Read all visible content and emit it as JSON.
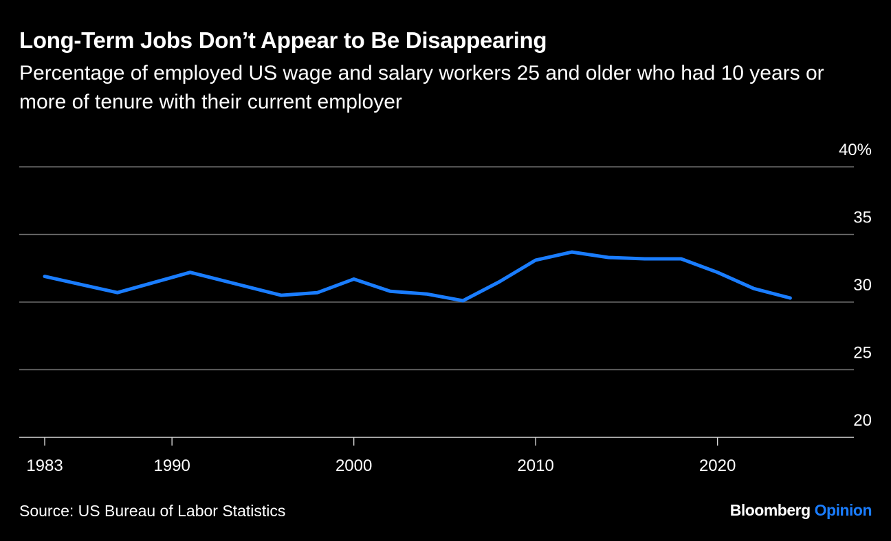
{
  "header": {
    "title": "Long-Term Jobs Don’t Appear to Be Disappearing",
    "subtitle": "Percentage of employed US wage and salary workers 25 and older who had 10 years or more of tenure with their current employer"
  },
  "footer": {
    "source": "Source: US Bureau of Labor Statistics",
    "brand_name": "Bloomberg",
    "brand_section": "Opinion"
  },
  "colors": {
    "background": "#000000",
    "line": "#1a7dff",
    "grid": "#6e6e6e",
    "text": "#ffffff",
    "brand_accent": "#1a7dff"
  },
  "chart_data": {
    "type": "line",
    "title": "Long-Term Jobs Don’t Appear to Be Disappearing",
    "subtitle": "Percentage of employed US wage and salary workers 25 and older who had 10 years or more of tenure with their current employer",
    "xlabel": "",
    "ylabel": "",
    "x": [
      1983,
      1987,
      1991,
      1996,
      1998,
      2000,
      2002,
      2004,
      2006,
      2008,
      2010,
      2012,
      2014,
      2016,
      2018,
      2020,
      2022,
      2024
    ],
    "series": [
      {
        "values": [
          31.9,
          30.7,
          32.2,
          30.5,
          30.7,
          31.7,
          30.8,
          30.6,
          30.1,
          31.5,
          33.1,
          33.7,
          33.3,
          33.2,
          33.2,
          32.2,
          31.0,
          30.3
        ]
      }
    ],
    "ylim": [
      20,
      40
    ],
    "yticks": [
      20,
      25,
      30,
      35,
      40
    ],
    "ytick_labels": [
      "20",
      "25",
      "30",
      "35",
      "40%"
    ],
    "xticks": [
      1983,
      1990,
      2000,
      2010,
      2020
    ],
    "xtick_labels": [
      "1983",
      "1990",
      "2000",
      "2010",
      "2020"
    ],
    "xlim": [
      1981.6,
      2027.5
    ],
    "grid": "horizontal",
    "y_axis_position": "right"
  }
}
